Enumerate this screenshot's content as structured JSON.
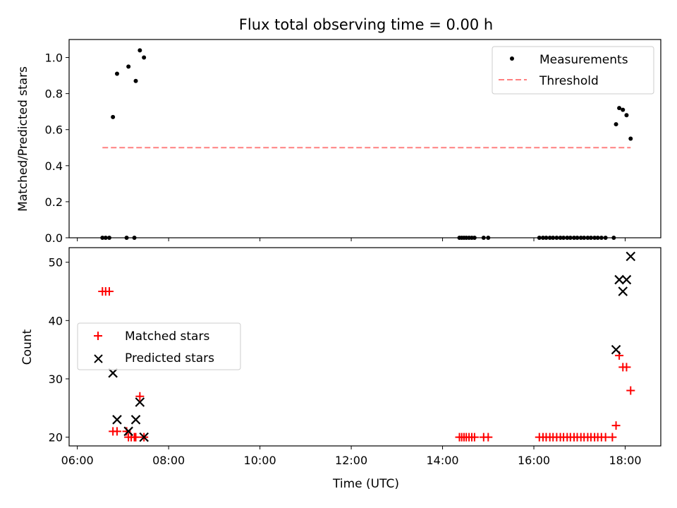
{
  "chart_data": [
    {
      "type": "scatter",
      "title": "Flux total observing time = 0.00 h",
      "xlabel": "",
      "ylabel": "Matched/Predicted stars",
      "x_unit": "time (UTC, hours)",
      "xlim": [
        5.82,
        18.78
      ],
      "ylim": [
        0,
        1.1
      ],
      "yticks": [
        "0.0",
        "0.2",
        "0.4",
        "0.6",
        "0.8",
        "1.0"
      ],
      "legend_position": "top-right",
      "series": [
        {
          "name": "Measurements",
          "style": "point",
          "color": "#000000",
          "x": [
            6.55,
            6.62,
            6.7,
            6.78,
            6.87,
            7.12,
            7.28,
            7.37,
            7.46,
            7.08,
            7.25,
            14.37,
            14.42,
            14.47,
            14.52,
            14.58,
            14.64,
            14.7,
            14.9,
            15.0,
            16.12,
            16.2,
            16.27,
            16.35,
            16.42,
            16.5,
            16.58,
            16.65,
            16.73,
            16.8,
            16.88,
            16.95,
            17.03,
            17.1,
            17.18,
            17.25,
            17.33,
            17.4,
            17.48,
            17.57,
            17.75,
            17.8,
            17.87,
            17.95,
            18.03,
            18.12
          ],
          "y": [
            0,
            0,
            0,
            0.67,
            0.91,
            0.95,
            0.87,
            1.04,
            1.0,
            0,
            0,
            0,
            0,
            0,
            0,
            0,
            0,
            0,
            0,
            0,
            0,
            0,
            0,
            0,
            0,
            0,
            0,
            0,
            0,
            0,
            0,
            0,
            0,
            0,
            0,
            0,
            0,
            0,
            0,
            0,
            0,
            0.63,
            0.72,
            0.71,
            0.68,
            0.55
          ]
        },
        {
          "name": "Threshold",
          "style": "dashed-line",
          "color": "#ff8080",
          "x": [
            6.55,
            18.12
          ],
          "y": [
            0.5,
            0.5
          ]
        }
      ]
    },
    {
      "type": "scatter",
      "title": "",
      "xlabel": "Time (UTC)",
      "ylabel": "Count",
      "x_unit": "time (UTC, hours)",
      "xlim": [
        5.82,
        18.78
      ],
      "ylim": [
        18.5,
        52.5
      ],
      "yticks": [
        "20",
        "30",
        "40",
        "50"
      ],
      "xticks": [
        {
          "value": 6,
          "label": "06:00"
        },
        {
          "value": 8,
          "label": "08:00"
        },
        {
          "value": 10,
          "label": "10:00"
        },
        {
          "value": 12,
          "label": "12:00"
        },
        {
          "value": 14,
          "label": "14:00"
        },
        {
          "value": 16,
          "label": "16:00"
        },
        {
          "value": 18,
          "label": "18:00"
        }
      ],
      "legend_position": "center-left",
      "series": [
        {
          "name": "Matched stars",
          "marker": "plus",
          "color": "#ff0000",
          "x": [
            6.55,
            6.62,
            6.7,
            6.78,
            6.87,
            7.08,
            7.12,
            7.18,
            7.25,
            7.28,
            7.37,
            7.46,
            14.37,
            14.42,
            14.47,
            14.52,
            14.58,
            14.64,
            14.7,
            14.9,
            15.0,
            16.12,
            16.2,
            16.27,
            16.35,
            16.42,
            16.5,
            16.58,
            16.65,
            16.73,
            16.8,
            16.88,
            16.95,
            17.03,
            17.1,
            17.18,
            17.25,
            17.33,
            17.4,
            17.48,
            17.57,
            17.72,
            17.8,
            17.87,
            17.95,
            18.03,
            18.12
          ],
          "y": [
            45,
            45,
            45,
            21,
            21,
            21,
            20,
            20,
            20,
            20,
            27,
            20,
            20,
            20,
            20,
            20,
            20,
            20,
            20,
            20,
            20,
            20,
            20,
            20,
            20,
            20,
            20,
            20,
            20,
            20,
            20,
            20,
            20,
            20,
            20,
            20,
            20,
            20,
            20,
            20,
            20,
            20,
            22,
            34,
            32,
            32,
            28
          ]
        },
        {
          "name": "Predicted stars",
          "marker": "x",
          "color": "#000000",
          "x": [
            6.78,
            6.87,
            7.12,
            7.28,
            7.37,
            7.46,
            17.8,
            17.87,
            17.95,
            18.03,
            18.12
          ],
          "y": [
            31,
            23,
            21,
            23,
            26,
            20,
            35,
            47,
            45,
            47,
            51
          ]
        }
      ]
    }
  ]
}
